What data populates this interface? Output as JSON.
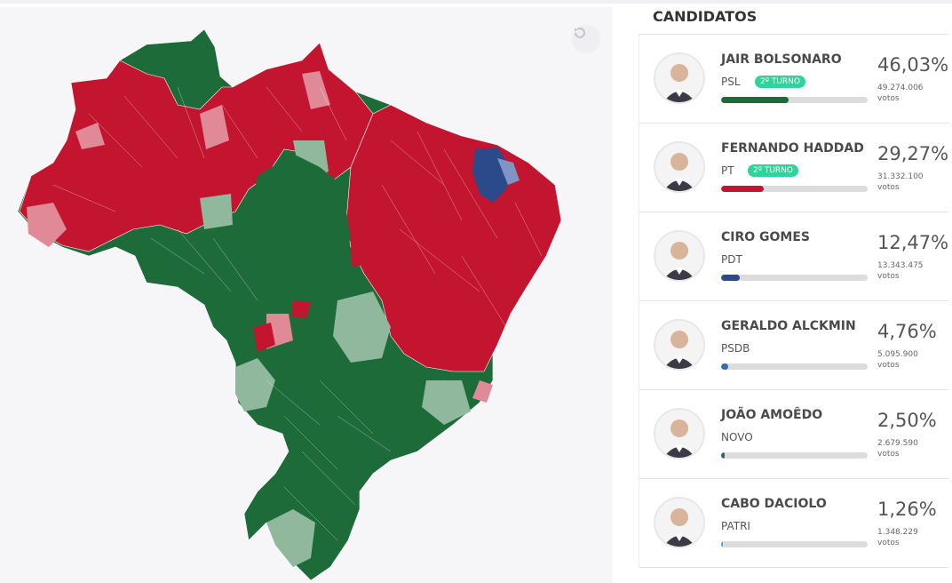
{
  "sidebar": {
    "title": "CANDIDATOS"
  },
  "reset_icon": "rotate-ccw-icon",
  "colors": {
    "psl_dark": "#1e6b3a",
    "psl_light": "#8fb89c",
    "pt_dark": "#c3152f",
    "pt_light": "#e08a98",
    "pdt": "#2a4a8a",
    "map_bg": "#f6f5f8"
  },
  "candidates": [
    {
      "name": "JAIR BOLSONARO",
      "party": "PSL",
      "badge": "2º TURNO",
      "pct": "46,03%",
      "votes": "49.274.006",
      "votes_label": "votos",
      "fraction": 0.4603,
      "color": "#1e6b3a"
    },
    {
      "name": "FERNANDO HADDAD",
      "party": "PT",
      "badge": "2º TURNO",
      "pct": "29,27%",
      "votes": "31.332.100",
      "votes_label": "votos",
      "fraction": 0.2927,
      "color": "#c3152f"
    },
    {
      "name": "CIRO GOMES",
      "party": "PDT",
      "badge": "",
      "pct": "12,47%",
      "votes": "13.343.475",
      "votes_label": "votos",
      "fraction": 0.1247,
      "color": "#2a4a8a"
    },
    {
      "name": "GERALDO ALCKMIN",
      "party": "PSDB",
      "badge": "",
      "pct": "4,76%",
      "votes": "5.095.900",
      "votes_label": "votos",
      "fraction": 0.0476,
      "color": "#2f6db5"
    },
    {
      "name": "JOÃO AMOÊDO",
      "party": "NOVO",
      "badge": "",
      "pct": "2,50%",
      "votes": "2.679.590",
      "votes_label": "votos",
      "fraction": 0.025,
      "color": "#2c6a6a"
    },
    {
      "name": "CABO DACIOLO",
      "party": "PATRI",
      "badge": "",
      "pct": "1,26%",
      "votes": "1.348.229",
      "votes_label": "votos",
      "fraction": 0.0126,
      "color": "#3ab0c8"
    }
  ]
}
